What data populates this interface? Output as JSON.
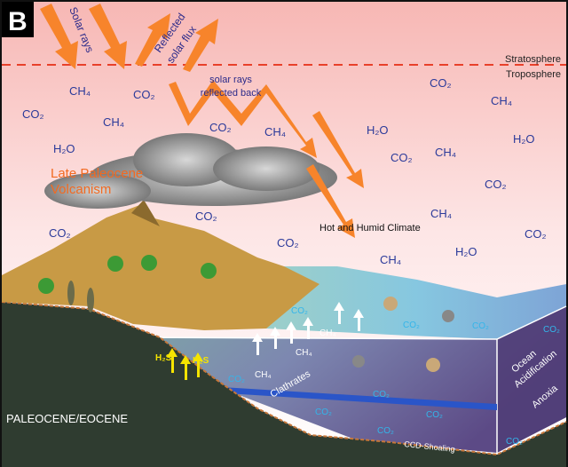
{
  "panel_letter": "B",
  "labels": {
    "solar_rays": "Solar rays",
    "reflected_solar_flux_1": "Reflected",
    "reflected_solar_flux_2": "solar flux",
    "stratosphere": "Stratosphere",
    "troposphere": "Troposphere",
    "reflected_back_1": "solar rays",
    "reflected_back_2": "reflected back",
    "volcanism_1": "Late Paleocene",
    "volcanism_2": "Volcanism",
    "climate": "Hot and Humid Climate",
    "clathrates": "Clathrates",
    "ccd": "CCD-Shoaling",
    "ocean_acid_1": "Ocean",
    "ocean_acid_2": "Acidification",
    "anoxia": "Anoxia",
    "epoch": "PALEOCENE/EOCENE"
  },
  "atmosphere_gases": [
    "CH₄",
    "CO₂",
    "CO₂",
    "CH₄",
    "CO₂",
    "CH₄",
    "H₂O",
    "CO₂",
    "CH₄",
    "H₂O",
    "CH₄",
    "H₂O",
    "CO₂",
    "CO₂",
    "CH₄",
    "CO₂",
    "CO₂",
    "H₂O",
    "CH₄",
    "CO₂"
  ],
  "ocean_gases": [
    "CO₂",
    "CO₂",
    "CO₂",
    "CO₂",
    "CO₂",
    "CO₂",
    "CO₂",
    "CO₂",
    "CO₂",
    "CO₂",
    "CO₂"
  ],
  "methane_labels": [
    "CH₄",
    "CH₄",
    "CH₄"
  ],
  "h2s_labels": [
    "H₂S",
    "H₂S"
  ],
  "colors": {
    "arrow": "#f7842b",
    "gas_air": "#2b3a9a",
    "gas_ocean": "#33b5ea",
    "dashed_line": "#e8402a",
    "volcanism_text": "#f26a21",
    "ccd_band": "#2a55c8"
  }
}
